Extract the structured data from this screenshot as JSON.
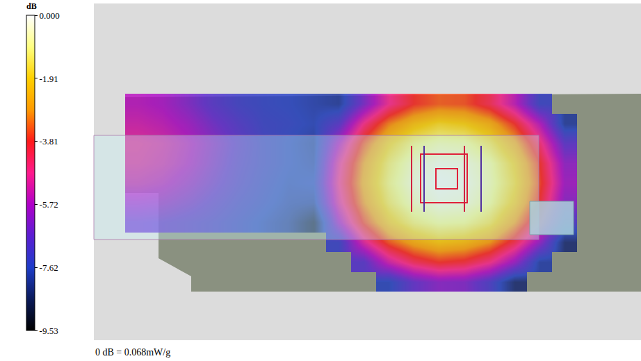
{
  "chart_data": {
    "type": "heatmap",
    "tick_labels": false,
    "cells": [
      [
        -5.6,
        -5.8,
        -6.3,
        -6.9,
        -7.3,
        -7.5,
        -7.6,
        -7.8,
        -8.0,
        -6.4,
        -4.8,
        -3.8,
        -3.4,
        -3.5,
        -4.2,
        -5.5,
        -7.4,
        null
      ],
      [
        -5.3,
        -5.5,
        -5.9,
        -6.5,
        -7.0,
        -7.4,
        -7.5,
        -7.7,
        -6.9,
        -4.7,
        -3.1,
        -2.2,
        -1.7,
        -1.9,
        -2.5,
        -3.8,
        -5.6,
        -8.0
      ],
      [
        -5.0,
        -5.2,
        -5.6,
        -6.2,
        -6.8,
        -7.3,
        -7.6,
        -7.9,
        -5.7,
        -3.5,
        -2.0,
        -1.1,
        -0.7,
        -0.8,
        -1.5,
        -2.7,
        -4.5,
        -6.8
      ],
      [
        -5.1,
        -5.3,
        -5.7,
        -6.3,
        -6.9,
        -7.3,
        -7.6,
        -7.8,
        -5.0,
        -2.9,
        -1.4,
        -0.5,
        -0.15,
        -0.25,
        -0.8,
        -2.0,
        -3.8,
        -6.1
      ],
      [
        -5.4,
        -5.6,
        -6.0,
        -6.5,
        -7.0,
        -7.4,
        -7.7,
        -7.6,
        -4.8,
        -2.7,
        -1.2,
        -0.3,
        0,
        -0.1,
        -0.7,
        -1.8,
        -3.6,
        -5.9
      ],
      [
        -6.0,
        -6.1,
        -6.4,
        -6.8,
        -7.2,
        -7.5,
        -7.8,
        -7.9,
        -5.1,
        -3.0,
        -1.5,
        -0.6,
        -0.2,
        -0.3,
        -0.9,
        -2.1,
        -3.9,
        -6.2
      ],
      [
        -6.6,
        -6.7,
        -6.9,
        -7.1,
        -7.4,
        -7.7,
        -8.0,
        -8.8,
        -5.9,
        -3.7,
        -2.2,
        -1.3,
        -0.9,
        -1.0,
        -1.6,
        -2.9,
        -4.7,
        -7.0
      ],
      [
        null,
        null,
        null,
        null,
        null,
        null,
        null,
        null,
        -7.4,
        -5.1,
        -3.5,
        -2.6,
        -2.1,
        -2.3,
        -2.9,
        -4.2,
        -6.1,
        -8.4
      ],
      [
        null,
        null,
        null,
        null,
        null,
        null,
        null,
        null,
        null,
        -6.9,
        -5.3,
        -4.3,
        -3.8,
        -4.0,
        -4.7,
        -6.0,
        -7.9,
        null
      ],
      [
        null,
        null,
        null,
        null,
        null,
        null,
        null,
        null,
        null,
        null,
        -7.7,
        -6.7,
        -6.2,
        -6.3,
        -7.1,
        -8.4,
        null,
        null
      ]
    ],
    "colorbar": {
      "title": "dB",
      "range": [
        -9.53,
        0
      ],
      "ticks": [
        {
          "value": 0,
          "label": "0.000"
        },
        -1.91,
        -3.81,
        -5.72,
        -7.62,
        -9.53
      ]
    },
    "annotations": [
      "0 dB = 0.068mW/g"
    ]
  }
}
